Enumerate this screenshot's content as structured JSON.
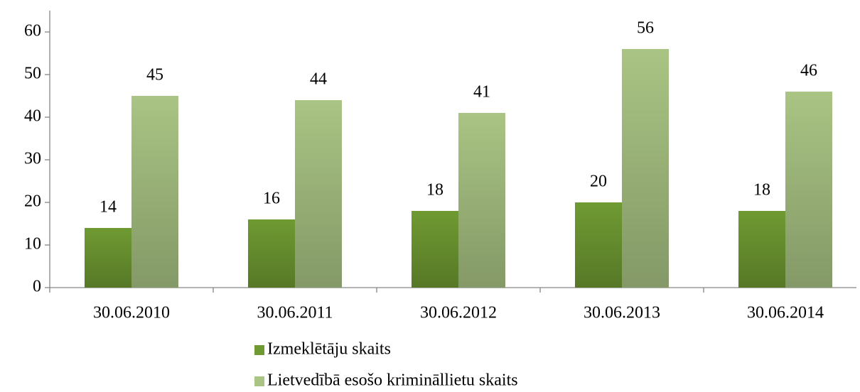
{
  "chart_data": {
    "type": "bar",
    "categories": [
      "30.06.2010",
      "30.06.2011",
      "30.06.2012",
      "30.06.2013",
      "30.06.2014"
    ],
    "series": [
      {
        "name": "Izmeklētāju skaits",
        "color": "#6f9a32",
        "values": [
          14,
          16,
          18,
          20,
          18
        ]
      },
      {
        "name": "Lietvedībā esošo krimināllietu skaits",
        "color": "#a9c484",
        "values": [
          45,
          44,
          41,
          56,
          46
        ]
      }
    ],
    "ylim": [
      0,
      60
    ],
    "yticks": [
      0,
      10,
      20,
      30,
      40,
      50,
      60
    ],
    "grid": false,
    "legend": "bottom"
  }
}
